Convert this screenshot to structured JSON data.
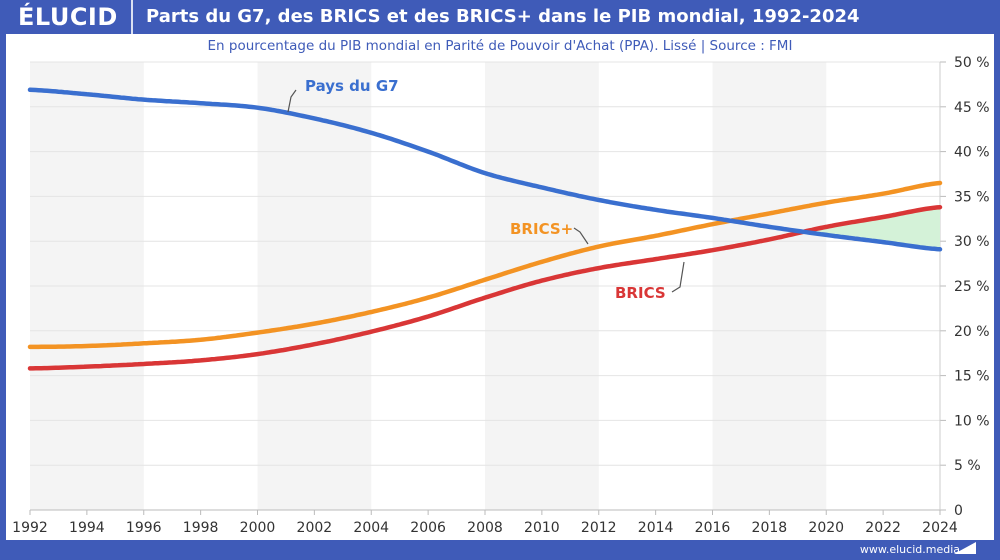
{
  "header": {
    "logo": "ÉLUCID",
    "title": "Parts du G7, des BRICS et des BRICS+ dans le PIB mondial, 1992-2024"
  },
  "subtitle": "En pourcentage du PIB mondial en Parité de Pouvoir d'Achat (PPA). Lissé  |  Source : FMI",
  "footer": "www.elucid.media",
  "colors": {
    "brand": "#3f5bb8",
    "g7": "#3a6fcf",
    "brics_plus": "#f39323",
    "brics": "#d93636",
    "gap_fill": "#d4f2d8",
    "band": "#f4f4f4"
  },
  "chart_data": {
    "type": "line",
    "x": [
      1992,
      1994,
      1996,
      1998,
      2000,
      2002,
      2004,
      2006,
      2008,
      2010,
      2012,
      2014,
      2016,
      2018,
      2020,
      2022,
      2024
    ],
    "xlim": [
      1992,
      2024
    ],
    "ylim": [
      0,
      50
    ],
    "y_ticks": [
      "0",
      "5 %",
      "10 %",
      "15 %",
      "20 %",
      "25 %",
      "30 %",
      "35 %",
      "40 %",
      "45 %",
      "50 %"
    ],
    "x_ticks": [
      "1992",
      "1994",
      "1996",
      "1998",
      "2000",
      "2002",
      "2004",
      "2006",
      "2008",
      "2010",
      "2012",
      "2014",
      "2016",
      "2018",
      "2020",
      "2022",
      "2024"
    ],
    "y_axis_side": "right",
    "grid": true,
    "series": [
      {
        "name": "Pays du G7",
        "color": "#3a6fcf",
        "values": [
          46.9,
          46.4,
          45.8,
          45.4,
          44.9,
          43.7,
          42.1,
          40.0,
          37.6,
          36.0,
          34.6,
          33.5,
          32.6,
          31.6,
          30.7,
          29.9,
          29.1
        ]
      },
      {
        "name": "BRICS+",
        "color": "#f39323",
        "values": [
          18.2,
          18.3,
          18.6,
          19.0,
          19.8,
          20.8,
          22.1,
          23.7,
          25.7,
          27.7,
          29.4,
          30.6,
          31.9,
          33.1,
          34.3,
          35.3,
          36.5
        ]
      },
      {
        "name": "BRICS",
        "color": "#d93636",
        "values": [
          15.8,
          16.0,
          16.3,
          16.7,
          17.4,
          18.5,
          19.9,
          21.6,
          23.7,
          25.6,
          27.0,
          28.0,
          29.0,
          30.2,
          31.6,
          32.7,
          33.8
        ]
      }
    ],
    "shaded_gap": "BRICS above Pays du G7"
  }
}
